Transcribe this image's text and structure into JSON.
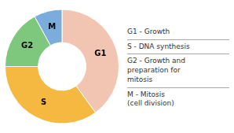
{
  "chart_data": {
    "type": "doughnut",
    "categories": [
      "G1",
      "S",
      "G2",
      "M"
    ],
    "values": [
      40,
      35,
      17,
      8
    ],
    "colors": [
      "#f2c4b2",
      "#f5b942",
      "#7ec87e",
      "#7aaddb"
    ],
    "legend": "right",
    "annotations": [
      "G1 - Growth",
      "S - DNA synthesis",
      "G2 - Growth and\npreparation for\nmitosis",
      "M - Mitosis\n(cell division)"
    ]
  }
}
